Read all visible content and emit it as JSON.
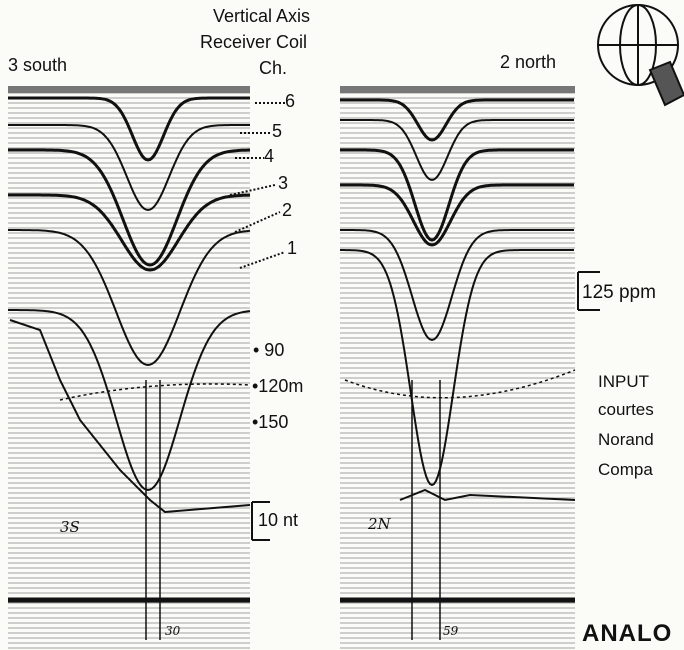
{
  "title": {
    "line1": "Vertical Axis",
    "line2": "Receiver Coil",
    "line3": "Ch."
  },
  "panels": {
    "left": {
      "label": "3 south",
      "handwritten": "3S"
    },
    "right": {
      "label": "2 north",
      "handwritten": "2N"
    }
  },
  "channels": [
    "6",
    "5",
    "4",
    "3",
    "2",
    "1"
  ],
  "altitude_labels": [
    "• 90",
    "•120m",
    "•150"
  ],
  "scales": {
    "ppm": "125 ppm",
    "nt": "10 nt"
  },
  "credit": {
    "line1": "INPUT",
    "line2": "courtes",
    "line3": "Norand",
    "line4": "Compa"
  },
  "footer": "ANALO",
  "fiducials": {
    "left": "30",
    "right": "59"
  },
  "colors": {
    "ink": "#111111",
    "paper": "#fbfbf8",
    "grid": "#5a5a5a"
  },
  "logo_icon": "globe-logo-icon"
}
